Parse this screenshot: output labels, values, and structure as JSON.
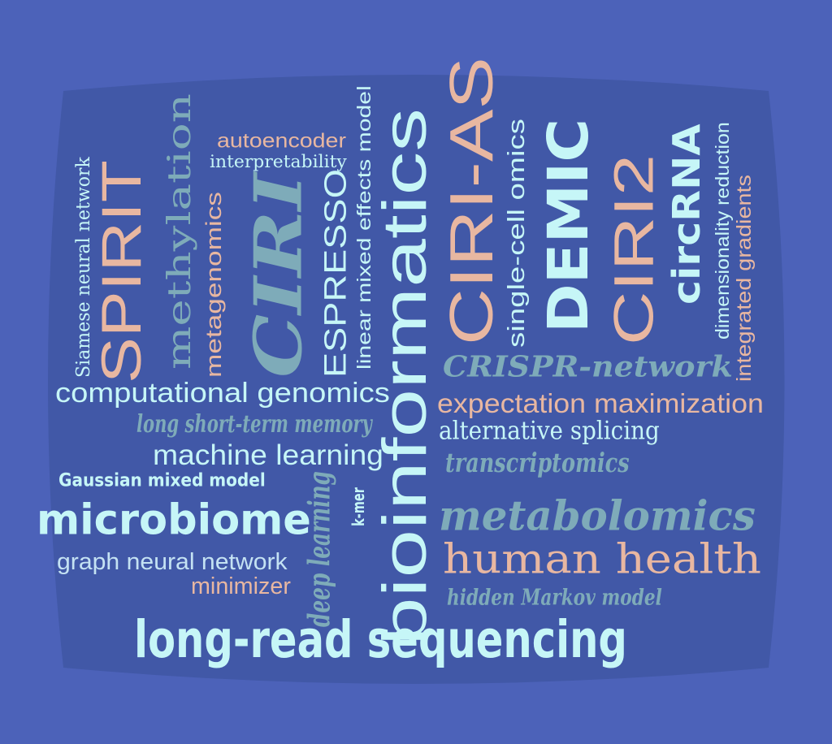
{
  "colors": {
    "background": "#4c62b9",
    "panel": "#4158a7",
    "light_cyan": "#c6f6f7",
    "teal": "#7eabb9",
    "peach": "#e8b7a1",
    "pale_blue": "#c4e2f3"
  },
  "words": [
    {
      "id": "word-siamese-neural-network",
      "text": "Siamese neural network",
      "color": "light_cyan"
    },
    {
      "id": "word-spirit",
      "text": "SPIRIT",
      "color": "peach"
    },
    {
      "id": "word-methylation",
      "text": "methylation",
      "color": "teal"
    },
    {
      "id": "word-metagenomics",
      "text": "metagenomics",
      "color": "peach"
    },
    {
      "id": "word-ciri",
      "text": "CIRI",
      "color": "teal"
    },
    {
      "id": "word-autoencoder",
      "text": "autoencoder",
      "color": "peach"
    },
    {
      "id": "word-interpretability",
      "text": "interpretability",
      "color": "light_cyan"
    },
    {
      "id": "word-espresso",
      "text": "ESPRESSO",
      "color": "light_cyan"
    },
    {
      "id": "word-linear-mixed-effects-model",
      "text": "linear mixed effects model",
      "color": "light_cyan"
    },
    {
      "id": "word-bioinformatics",
      "text": "bioinformatics",
      "color": "light_cyan"
    },
    {
      "id": "word-ciri-as",
      "text": "CIRI-AS",
      "color": "peach"
    },
    {
      "id": "word-single-cell-omics",
      "text": "single-cell omics",
      "color": "light_cyan"
    },
    {
      "id": "word-demic",
      "text": "DEMIC",
      "color": "light_cyan"
    },
    {
      "id": "word-ciri2",
      "text": "CIRI2",
      "color": "peach"
    },
    {
      "id": "word-circrna",
      "text": "circRNA",
      "color": "light_cyan"
    },
    {
      "id": "word-dimensionality-reduction",
      "text": "dimensionality reduction",
      "color": "light_cyan"
    },
    {
      "id": "word-integrated-gradients",
      "text": "integrated gradients",
      "color": "peach"
    },
    {
      "id": "word-crispr-network",
      "text": "CRISPR-network",
      "color": "teal"
    },
    {
      "id": "word-computational-genomics",
      "text": "computational genomics",
      "color": "light_cyan"
    },
    {
      "id": "word-expectation-maximization",
      "text": "expectation maximization",
      "color": "peach"
    },
    {
      "id": "word-long-short-term-memory",
      "text": "long short-term memory",
      "color": "teal"
    },
    {
      "id": "word-alternative-splicing",
      "text": "alternative splicing",
      "color": "light_cyan"
    },
    {
      "id": "word-machine-learning",
      "text": "machine learning",
      "color": "light_cyan"
    },
    {
      "id": "word-transcriptomics",
      "text": "transcriptomics",
      "color": "teal"
    },
    {
      "id": "word-gaussian-mixed-model",
      "text": "Gaussian mixed model",
      "color": "light_cyan"
    },
    {
      "id": "word-k-mer",
      "text": "k-mer",
      "color": "light_cyan"
    },
    {
      "id": "word-deep-learning",
      "text": "deep learning",
      "color": "teal"
    },
    {
      "id": "word-microbiome",
      "text": "microbiome",
      "color": "light_cyan"
    },
    {
      "id": "word-metabolomics",
      "text": "metabolomics",
      "color": "teal"
    },
    {
      "id": "word-graph-neural-network",
      "text": "graph neural network",
      "color": "pale_blue"
    },
    {
      "id": "word-human-health",
      "text": "human health",
      "color": "peach"
    },
    {
      "id": "word-minimizer",
      "text": "minimizer",
      "color": "peach"
    },
    {
      "id": "word-hidden-markov-model",
      "text": "hidden Markov model",
      "color": "teal"
    },
    {
      "id": "word-long-read-sequencing",
      "text": "long-read sequencing",
      "color": "light_cyan"
    }
  ]
}
